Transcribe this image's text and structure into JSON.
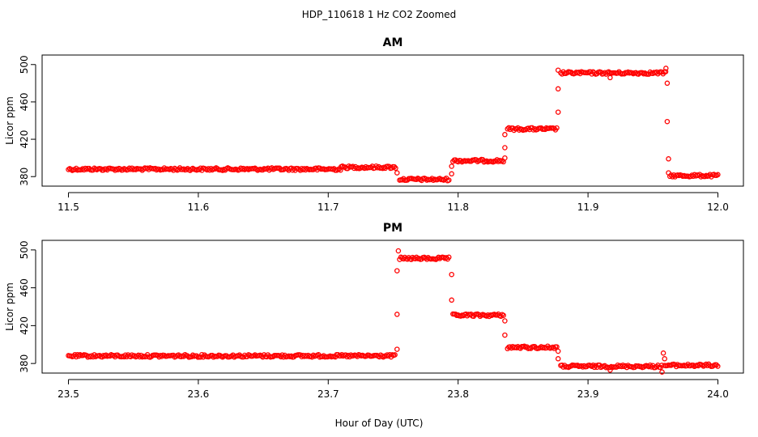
{
  "chart_data": [
    {
      "type": "scatter",
      "title": "AM",
      "xlabel": "",
      "ylabel": "Licor ppm",
      "xlim": [
        11.5,
        12.0
      ],
      "ylim": [
        375,
        505
      ],
      "xticks": [
        "11.5",
        "11.6",
        "11.7",
        "11.8",
        "11.9",
        "12.0"
      ],
      "yticks": [
        "380",
        "420",
        "460",
        "500"
      ],
      "grid": false,
      "marker_color": "#ff0000",
      "segments": [
        {
          "x_start": 11.5,
          "x_end": 11.71,
          "value": 388
        },
        {
          "x_start": 11.71,
          "x_end": 11.752,
          "value": 390
        },
        {
          "x_start": 11.755,
          "x_end": 11.793,
          "value": 377
        },
        {
          "x_start": 11.796,
          "x_end": 11.835,
          "value": 397
        },
        {
          "x_start": 11.838,
          "x_end": 11.876,
          "value": 431
        },
        {
          "x_start": 11.879,
          "x_end": 11.96,
          "value": 491
        },
        {
          "x_start": 11.963,
          "x_end": 12.0,
          "value": 381
        }
      ],
      "transition_points": [
        {
          "x": 11.753,
          "y": 384
        },
        {
          "x": 11.795,
          "y": 383
        },
        {
          "x": 11.795,
          "y": 391
        },
        {
          "x": 11.836,
          "y": 400
        },
        {
          "x": 11.836,
          "y": 411
        },
        {
          "x": 11.836,
          "y": 425
        },
        {
          "x": 11.877,
          "y": 449
        },
        {
          "x": 11.877,
          "y": 474
        },
        {
          "x": 11.877,
          "y": 494
        },
        {
          "x": 11.917,
          "y": 486
        },
        {
          "x": 11.96,
          "y": 496
        },
        {
          "x": 11.961,
          "y": 480
        },
        {
          "x": 11.961,
          "y": 439
        },
        {
          "x": 11.962,
          "y": 399
        },
        {
          "x": 11.962,
          "y": 384
        }
      ]
    },
    {
      "type": "scatter",
      "title": "PM",
      "xlabel": "Hour of Day (UTC)",
      "ylabel": "Licor ppm",
      "xlim": [
        23.5,
        24.0
      ],
      "ylim": [
        375,
        505
      ],
      "xticks": [
        "23.5",
        "23.6",
        "23.7",
        "23.8",
        "23.9",
        "24.0"
      ],
      "yticks": [
        "380",
        "420",
        "460",
        "500"
      ],
      "grid": false,
      "marker_color": "#ff0000",
      "segments": [
        {
          "x_start": 23.5,
          "x_end": 23.752,
          "value": 388
        },
        {
          "x_start": 23.755,
          "x_end": 23.793,
          "value": 491
        },
        {
          "x_start": 23.796,
          "x_end": 23.835,
          "value": 431
        },
        {
          "x_start": 23.838,
          "x_end": 23.876,
          "value": 397
        },
        {
          "x_start": 23.879,
          "x_end": 23.957,
          "value": 377
        },
        {
          "x_start": 23.959,
          "x_end": 24.0,
          "value": 378
        }
      ],
      "transition_points": [
        {
          "x": 23.753,
          "y": 395
        },
        {
          "x": 23.753,
          "y": 432
        },
        {
          "x": 23.753,
          "y": 478
        },
        {
          "x": 23.754,
          "y": 499
        },
        {
          "x": 23.795,
          "y": 474
        },
        {
          "x": 23.795,
          "y": 447
        },
        {
          "x": 23.836,
          "y": 425
        },
        {
          "x": 23.836,
          "y": 410
        },
        {
          "x": 23.877,
          "y": 393
        },
        {
          "x": 23.877,
          "y": 385
        },
        {
          "x": 23.917,
          "y": 373
        },
        {
          "x": 23.957,
          "y": 371
        },
        {
          "x": 23.958,
          "y": 391
        },
        {
          "x": 23.959,
          "y": 385
        }
      ]
    }
  ],
  "figure": {
    "title": "HDP_110618  1 Hz CO2 Zoomed",
    "xlabel": "Hour of Day (UTC)"
  }
}
